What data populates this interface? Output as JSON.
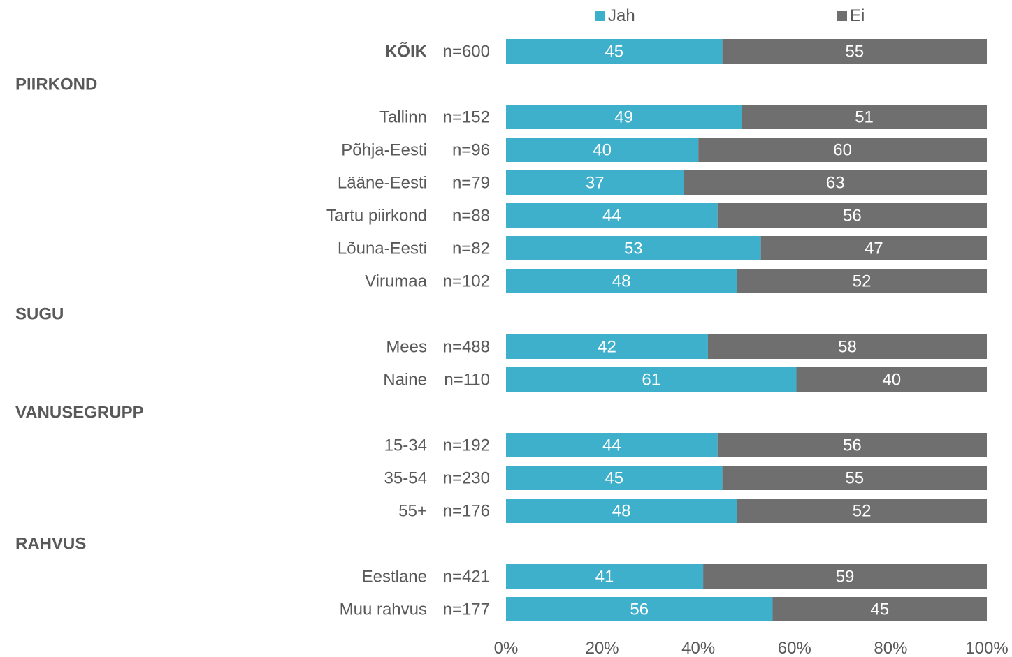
{
  "chart_data": {
    "type": "bar",
    "orientation": "horizontal",
    "stacked": true,
    "percent": true,
    "xlim": [
      0,
      100
    ],
    "x_ticks": [
      "0%",
      "20%",
      "40%",
      "60%",
      "80%",
      "100%"
    ],
    "legend": {
      "position": "top"
    },
    "series": [
      {
        "name": "Jah",
        "color": "#3fb0cc"
      },
      {
        "name": "Ei",
        "color": "#6f6f6f"
      }
    ],
    "rows": [
      {
        "kind": "row",
        "label": "KÕIK",
        "n": "n=600",
        "bold": true,
        "values": [
          45,
          55
        ]
      },
      {
        "kind": "group",
        "label": "PIIRKOND"
      },
      {
        "kind": "row",
        "label": "Tallinn",
        "n": "n=152",
        "values": [
          49,
          51
        ]
      },
      {
        "kind": "row",
        "label": "Põhja-Eesti",
        "n": "n=96",
        "values": [
          40,
          60
        ]
      },
      {
        "kind": "row",
        "label": "Lääne-Eesti",
        "n": "n=79",
        "values": [
          37,
          63
        ]
      },
      {
        "kind": "row",
        "label": "Tartu piirkond",
        "n": "n=88",
        "values": [
          44,
          56
        ]
      },
      {
        "kind": "row",
        "label": "Lõuna-Eesti",
        "n": "n=82",
        "values": [
          53,
          47
        ]
      },
      {
        "kind": "row",
        "label": "Virumaa",
        "n": "n=102",
        "values": [
          48,
          52
        ]
      },
      {
        "kind": "group",
        "label": "SUGU"
      },
      {
        "kind": "row",
        "label": "Mees",
        "n": "n=488",
        "values": [
          42,
          58
        ]
      },
      {
        "kind": "row",
        "label": "Naine",
        "n": "n=110",
        "values": [
          61,
          40
        ]
      },
      {
        "kind": "group",
        "label": "VANUSEGRUPP"
      },
      {
        "kind": "row",
        "label": "15-34",
        "n": "n=192",
        "values": [
          44,
          56
        ]
      },
      {
        "kind": "row",
        "label": "35-54",
        "n": "n=230",
        "values": [
          45,
          55
        ]
      },
      {
        "kind": "row",
        "label": "55+",
        "n": "n=176",
        "values": [
          48,
          52
        ]
      },
      {
        "kind": "group",
        "label": "RAHVUS"
      },
      {
        "kind": "row",
        "label": "Eestlane",
        "n": "n=421",
        "values": [
          41,
          59
        ]
      },
      {
        "kind": "row",
        "label": "Muu rahvus",
        "n": "n=177",
        "values": [
          56,
          45
        ]
      }
    ]
  }
}
